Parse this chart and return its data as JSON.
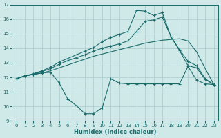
{
  "xlabel": "Humidex (Indice chaleur)",
  "bg_color": "#cfe8e8",
  "line_color": "#1a6b6b",
  "grid_color": "#b0d0d0",
  "xlim": [
    -0.5,
    23.5
  ],
  "ylim": [
    9,
    17
  ],
  "yticks": [
    9,
    10,
    11,
    12,
    13,
    14,
    15,
    16,
    17
  ],
  "xticks": [
    0,
    1,
    2,
    3,
    4,
    5,
    6,
    7,
    8,
    9,
    10,
    11,
    12,
    13,
    14,
    15,
    16,
    17,
    18,
    19,
    20,
    21,
    22,
    23
  ],
  "line1_x": [
    0,
    1,
    2,
    3,
    4,
    5,
    6,
    7,
    8,
    9,
    10,
    11,
    12,
    13,
    14,
    15,
    16,
    17,
    18,
    19,
    20,
    21,
    22,
    23
  ],
  "line1_y": [
    11.9,
    12.1,
    12.2,
    12.3,
    12.35,
    11.6,
    10.5,
    10.05,
    9.5,
    9.5,
    9.9,
    11.9,
    11.6,
    11.55,
    11.55,
    11.55,
    11.55,
    11.55,
    11.55,
    11.55,
    12.75,
    11.8,
    11.55,
    11.5
  ],
  "line1_markers": [
    0,
    1,
    2,
    3,
    4,
    5,
    6,
    7,
    8,
    9,
    20,
    21,
    22,
    23
  ],
  "line2_x": [
    0,
    1,
    2,
    3,
    4,
    5,
    6,
    7,
    8,
    9,
    10,
    11,
    12,
    13,
    14,
    15,
    16,
    17,
    18,
    19,
    20,
    21,
    22,
    23
  ],
  "line2_y": [
    11.9,
    12.1,
    12.2,
    12.3,
    12.45,
    12.65,
    12.85,
    13.05,
    13.25,
    13.45,
    13.6,
    13.75,
    13.9,
    14.05,
    14.2,
    14.35,
    14.45,
    14.55,
    14.6,
    14.65,
    14.5,
    13.75,
    12.6,
    11.5
  ],
  "line3_x": [
    0,
    1,
    2,
    3,
    4,
    5,
    6,
    7,
    8,
    9,
    10,
    11,
    12,
    13,
    14,
    15,
    16,
    17,
    18,
    19,
    20,
    21,
    22,
    23
  ],
  "line3_y": [
    11.9,
    12.1,
    12.2,
    12.4,
    12.6,
    12.9,
    13.15,
    13.35,
    13.55,
    13.8,
    14.0,
    14.15,
    14.3,
    14.5,
    15.15,
    15.85,
    15.95,
    16.15,
    14.8,
    13.85,
    12.8,
    12.65,
    11.85,
    11.5
  ],
  "line3_markers": [
    0,
    1,
    2,
    3,
    4,
    5,
    6,
    7,
    8,
    9,
    10,
    11,
    12,
    13,
    14,
    15,
    16,
    17,
    18,
    19,
    20,
    21,
    22,
    23
  ],
  "line4_x": [
    0,
    1,
    2,
    3,
    4,
    5,
    6,
    7,
    8,
    9,
    10,
    11,
    12,
    13,
    14,
    15,
    16,
    17,
    18,
    19,
    20,
    21,
    22,
    23
  ],
  "line4_y": [
    11.9,
    12.1,
    12.25,
    12.45,
    12.7,
    13.05,
    13.3,
    13.55,
    13.8,
    14.05,
    14.45,
    14.75,
    14.95,
    15.15,
    16.6,
    16.55,
    16.25,
    16.45,
    14.8,
    13.9,
    13.1,
    12.8,
    11.9,
    11.5
  ],
  "line4_markers": [
    0,
    1,
    2,
    3,
    4,
    5,
    6,
    7,
    8,
    9,
    10,
    11,
    12,
    13,
    14,
    15,
    16,
    17,
    18,
    19,
    20,
    21,
    22,
    23
  ]
}
